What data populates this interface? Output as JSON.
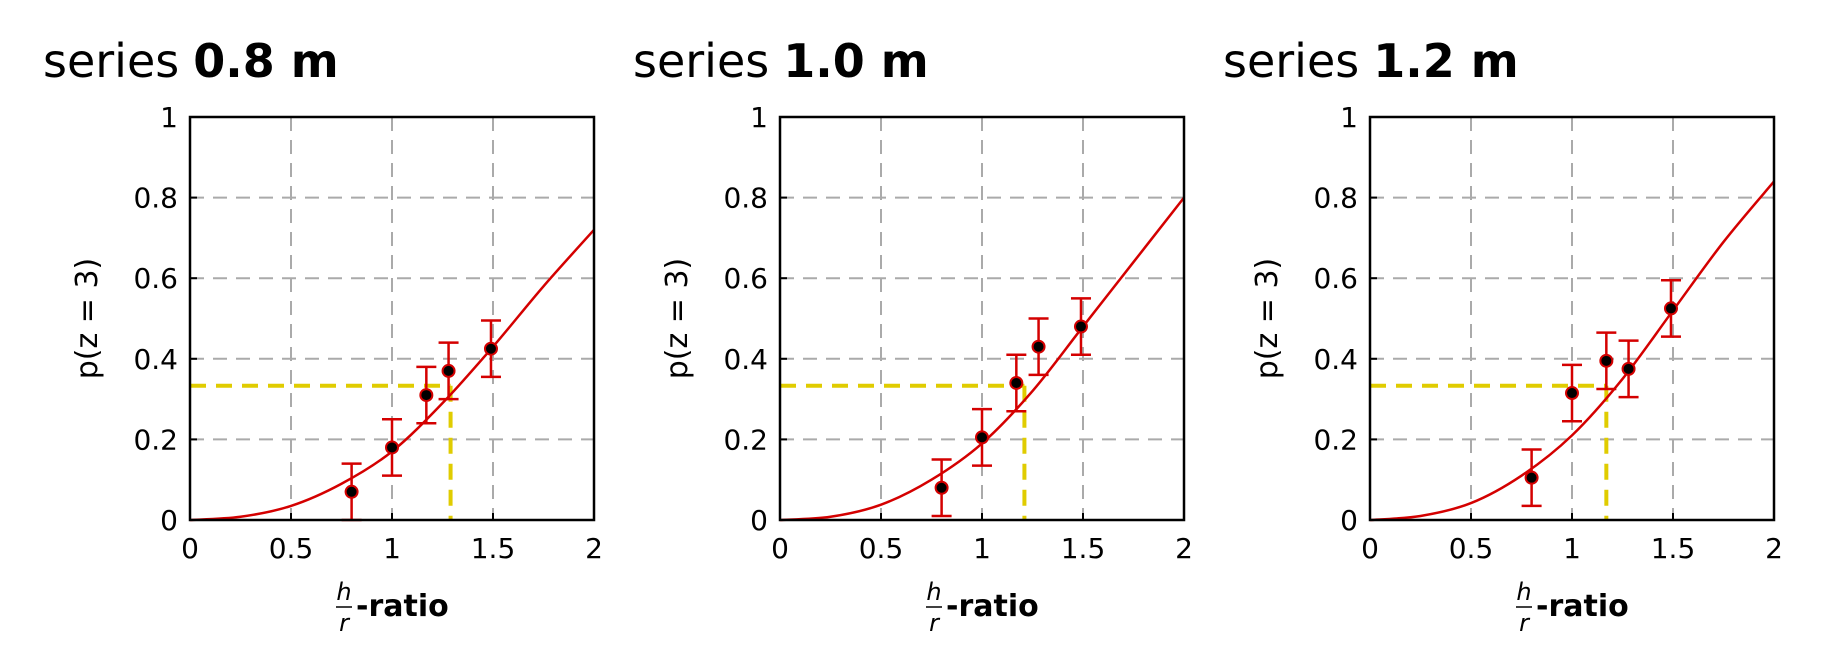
{
  "chart_data": [
    {
      "type": "line",
      "title_prefix": "series",
      "title_value": "0.8 m",
      "ylabel": "p(z = 3)",
      "xlabel": {
        "num": "h",
        "den": "r",
        "suffix": "-ratio"
      },
      "xlim": [
        0,
        2
      ],
      "ylim": [
        0,
        1
      ],
      "xticks": [
        0,
        0.5,
        1,
        1.5,
        2
      ],
      "yticks": [
        0,
        0.2,
        0.4,
        0.6,
        0.8,
        1
      ],
      "xtick_labels": [
        "0",
        "0.5",
        "1",
        "1.5",
        "2"
      ],
      "ytick_labels": [
        "0",
        "0.2",
        "0.4",
        "0.6",
        "0.8",
        "1"
      ],
      "grid": true,
      "points": [
        {
          "x": 0.8,
          "y": 0.07,
          "err": 0.07
        },
        {
          "x": 1.0,
          "y": 0.18,
          "err": 0.07
        },
        {
          "x": 1.17,
          "y": 0.31,
          "err": 0.07
        },
        {
          "x": 1.28,
          "y": 0.37,
          "err": 0.07
        },
        {
          "x": 1.49,
          "y": 0.425,
          "err": 0.07
        }
      ],
      "curve": {
        "x": [
          0,
          0.25,
          0.5,
          0.75,
          1.0,
          1.25,
          1.5,
          1.75,
          2.0
        ],
        "y": [
          0,
          0.008,
          0.035,
          0.09,
          0.17,
          0.29,
          0.43,
          0.58,
          0.72
        ]
      },
      "threshold": {
        "x": 1.29,
        "y": 0.333
      },
      "colors": {
        "curve": "#d40000",
        "errorbar": "#d40000",
        "point": "#000000",
        "threshold": "#e0cc00",
        "grid": "#aaaaaa"
      }
    },
    {
      "type": "line",
      "title_prefix": "series",
      "title_value": "1.0 m",
      "ylabel": "p(z = 3)",
      "xlabel": {
        "num": "h",
        "den": "r",
        "suffix": "-ratio"
      },
      "xlim": [
        0,
        2
      ],
      "ylim": [
        0,
        1
      ],
      "xticks": [
        0,
        0.5,
        1,
        1.5,
        2
      ],
      "yticks": [
        0,
        0.2,
        0.4,
        0.6,
        0.8,
        1
      ],
      "xtick_labels": [
        "0",
        "0.5",
        "1",
        "1.5",
        "2"
      ],
      "ytick_labels": [
        "0",
        "0.2",
        "0.4",
        "0.6",
        "0.8",
        "1"
      ],
      "grid": true,
      "points": [
        {
          "x": 0.8,
          "y": 0.08,
          "err": 0.07
        },
        {
          "x": 1.0,
          "y": 0.205,
          "err": 0.07
        },
        {
          "x": 1.17,
          "y": 0.34,
          "err": 0.07
        },
        {
          "x": 1.28,
          "y": 0.43,
          "err": 0.07
        },
        {
          "x": 1.49,
          "y": 0.48,
          "err": 0.07
        }
      ],
      "curve": {
        "x": [
          0,
          0.25,
          0.5,
          0.75,
          1.0,
          1.25,
          1.5,
          1.75,
          2.0
        ],
        "y": [
          0,
          0.008,
          0.038,
          0.1,
          0.19,
          0.32,
          0.48,
          0.64,
          0.8
        ]
      },
      "threshold": {
        "x": 1.21,
        "y": 0.333
      },
      "colors": {
        "curve": "#d40000",
        "errorbar": "#d40000",
        "point": "#000000",
        "threshold": "#e0cc00",
        "grid": "#aaaaaa"
      }
    },
    {
      "type": "line",
      "title_prefix": "series",
      "title_value": "1.2 m",
      "ylabel": "p(z = 3)",
      "xlabel": {
        "num": "h",
        "den": "r",
        "suffix": "-ratio"
      },
      "xlim": [
        0,
        2
      ],
      "ylim": [
        0,
        1
      ],
      "xticks": [
        0,
        0.5,
        1,
        1.5,
        2
      ],
      "yticks": [
        0,
        0.2,
        0.4,
        0.6,
        0.8,
        1
      ],
      "xtick_labels": [
        "0",
        "0.5",
        "1",
        "1.5",
        "2"
      ],
      "ytick_labels": [
        "0",
        "0.2",
        "0.4",
        "0.6",
        "0.8",
        "1"
      ],
      "grid": true,
      "points": [
        {
          "x": 0.8,
          "y": 0.105,
          "err": 0.07
        },
        {
          "x": 1.0,
          "y": 0.315,
          "err": 0.07
        },
        {
          "x": 1.17,
          "y": 0.395,
          "err": 0.07
        },
        {
          "x": 1.28,
          "y": 0.375,
          "err": 0.07
        },
        {
          "x": 1.49,
          "y": 0.525,
          "err": 0.07
        }
      ],
      "curve": {
        "x": [
          0,
          0.25,
          0.5,
          0.75,
          1.0,
          1.25,
          1.5,
          1.75,
          2.0
        ],
        "y": [
          0,
          0.01,
          0.042,
          0.11,
          0.21,
          0.35,
          0.52,
          0.69,
          0.84
        ]
      },
      "threshold": {
        "x": 1.17,
        "y": 0.333
      },
      "colors": {
        "curve": "#d40000",
        "errorbar": "#d40000",
        "point": "#000000",
        "threshold": "#e0cc00",
        "grid": "#aaaaaa"
      }
    }
  ]
}
